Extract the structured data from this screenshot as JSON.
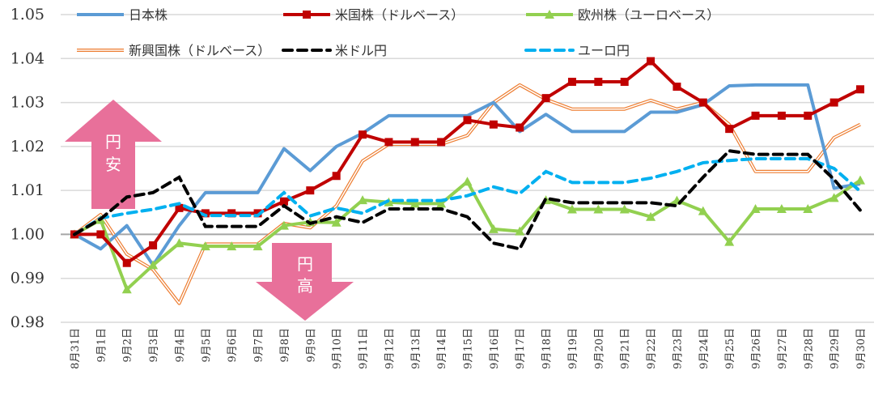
{
  "chart_data": {
    "type": "line",
    "title": "",
    "xlabel": "",
    "ylabel": "",
    "ylim": [
      0.98,
      1.05
    ],
    "yticks": [
      "0.98",
      "0.99",
      "1.00",
      "1.01",
      "1.02",
      "1.03",
      "1.04",
      "1.05"
    ],
    "grid": true,
    "legend_placement": "top",
    "categories": [
      "8月31日",
      "9月1日",
      "9月2日",
      "9月3日",
      "9月4日",
      "9月5日",
      "9月6日",
      "9月7日",
      "9月8日",
      "9月9日",
      "9月10日",
      "9月11日",
      "9月12日",
      "9月13日",
      "9月14日",
      "9月15日",
      "9月16日",
      "9月17日",
      "9月18日",
      "9月19日",
      "9月20日",
      "9月21日",
      "9月22日",
      "9月23日",
      "9月24日",
      "9月25日",
      "9月26日",
      "9月27日",
      "9月28日",
      "9月29日",
      "9月30日"
    ],
    "series": [
      {
        "name": "日本株",
        "color": "#5B9BD5",
        "style": "solid",
        "marker": "none",
        "values": [
          1.0,
          0.9967,
          1.002,
          0.993,
          1.002,
          1.0095,
          1.0095,
          1.0095,
          1.0195,
          1.0145,
          1.02,
          1.023,
          1.027,
          1.027,
          1.027,
          1.027,
          1.03,
          1.0234,
          1.0273,
          1.0234,
          1.0234,
          1.0234,
          1.0278,
          1.0278,
          1.0295,
          1.0338,
          1.034,
          1.034,
          1.034,
          1.0105,
          1.0115
        ]
      },
      {
        "name": "米国株（ドルベース）",
        "color": "#C00000",
        "style": "solid",
        "marker": "square",
        "values": [
          1.0,
          1.0,
          0.9935,
          0.9975,
          1.006,
          1.0048,
          1.0048,
          1.0048,
          1.0075,
          1.01,
          1.0133,
          1.0227,
          1.021,
          1.021,
          1.021,
          1.026,
          1.025,
          1.0243,
          1.031,
          1.0347,
          1.0347,
          1.0347,
          1.0394,
          1.0336,
          1.03,
          1.024,
          1.027,
          1.027,
          1.027,
          1.03,
          1.033
        ]
      },
      {
        "name": "欧州株（ユーロベース）",
        "color": "#92D050",
        "style": "solid",
        "marker": "triangle",
        "values": [
          1.0,
          1.0033,
          0.9875,
          0.993,
          0.998,
          0.9973,
          0.9973,
          0.9973,
          1.002,
          1.0028,
          1.0027,
          1.0078,
          1.0073,
          1.007,
          1.007,
          1.012,
          1.0012,
          1.0007,
          1.0078,
          1.0057,
          1.0057,
          1.0057,
          1.004,
          1.0077,
          1.0053,
          0.9983,
          1.0058,
          1.0058,
          1.0058,
          1.0083,
          1.0123
        ]
      },
      {
        "name": "新興国株（ドルベース）",
        "color": "#ED7D31",
        "style": "double",
        "marker": "none",
        "values": [
          1.0,
          1.0045,
          0.9955,
          0.992,
          0.9843,
          0.9978,
          0.9978,
          0.9978,
          1.0025,
          1.0015,
          1.0065,
          1.0167,
          1.0205,
          1.0205,
          1.0205,
          1.0225,
          1.03,
          1.034,
          1.0307,
          1.0285,
          1.0285,
          1.0285,
          1.0305,
          1.0285,
          1.03,
          1.025,
          1.0143,
          1.0143,
          1.0143,
          1.022,
          1.025
        ]
      },
      {
        "name": "米ドル円",
        "color": "#000000",
        "style": "dashed",
        "marker": "none",
        "values": [
          1.0,
          1.0035,
          1.0085,
          1.0095,
          1.013,
          1.0018,
          1.0018,
          1.0018,
          1.0065,
          1.0025,
          1.004,
          1.0027,
          1.0058,
          1.0058,
          1.0058,
          1.004,
          0.998,
          0.9967,
          1.0082,
          1.0072,
          1.0072,
          1.0072,
          1.0072,
          1.0065,
          1.013,
          1.019,
          1.0182,
          1.0182,
          1.0182,
          1.0125,
          1.0055
        ]
      },
      {
        "name": "ユーロ円",
        "color": "#00B0F0",
        "style": "dashed",
        "marker": "none",
        "values": [
          1.0,
          1.0037,
          1.0048,
          1.0057,
          1.007,
          1.0043,
          1.0043,
          1.0043,
          1.0095,
          1.0042,
          1.006,
          1.0048,
          1.0077,
          1.0077,
          1.0077,
          1.0088,
          1.0108,
          1.0093,
          1.0143,
          1.0118,
          1.0118,
          1.0118,
          1.0128,
          1.0143,
          1.0163,
          1.0168,
          1.0172,
          1.0172,
          1.0172,
          1.015,
          1.0098
        ]
      }
    ],
    "annotations": [
      {
        "text": "円安",
        "direction": "up",
        "color": "#E8709A"
      },
      {
        "text": "円高",
        "direction": "down",
        "color": "#E8709A"
      }
    ]
  }
}
